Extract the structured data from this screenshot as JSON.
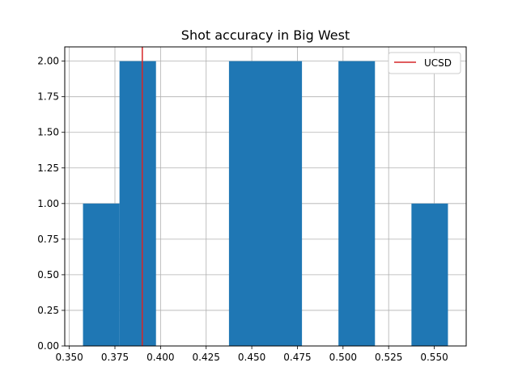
{
  "chart_data": {
    "type": "bar",
    "title": "Shot accuracy in Big West",
    "xlabel": "",
    "ylabel": "",
    "xlim": [
      0.3475,
      0.5675
    ],
    "ylim": [
      0,
      2.1
    ],
    "grid": true,
    "legend_position": "top-right",
    "bar_color": "#1f77b4",
    "bins": [
      {
        "start": 0.3575,
        "end": 0.3775,
        "count": 1
      },
      {
        "start": 0.3775,
        "end": 0.3975,
        "count": 2
      },
      {
        "start": 0.3975,
        "end": 0.4175,
        "count": 0
      },
      {
        "start": 0.4175,
        "end": 0.4375,
        "count": 0
      },
      {
        "start": 0.4375,
        "end": 0.4575,
        "count": 2
      },
      {
        "start": 0.4575,
        "end": 0.4775,
        "count": 2
      },
      {
        "start": 0.4775,
        "end": 0.4975,
        "count": 0
      },
      {
        "start": 0.4975,
        "end": 0.5175,
        "count": 2
      },
      {
        "start": 0.5175,
        "end": 0.5375,
        "count": 0
      },
      {
        "start": 0.5375,
        "end": 0.5575,
        "count": 1
      }
    ],
    "reference_line": {
      "name": "UCSD",
      "x": 0.39,
      "color": "#d62728"
    },
    "x_ticks": [
      0.35,
      0.375,
      0.4,
      0.425,
      0.45,
      0.475,
      0.5,
      0.525,
      0.55
    ],
    "x_tick_labels": [
      "0.350",
      "0.375",
      "0.400",
      "0.425",
      "0.450",
      "0.475",
      "0.500",
      "0.525",
      "0.550"
    ],
    "y_ticks": [
      0,
      0.25,
      0.5,
      0.75,
      1,
      1.25,
      1.5,
      1.75,
      2
    ],
    "y_tick_labels": [
      "0.00",
      "0.25",
      "0.50",
      "0.75",
      "1.00",
      "1.25",
      "1.50",
      "1.75",
      "2.00"
    ]
  }
}
